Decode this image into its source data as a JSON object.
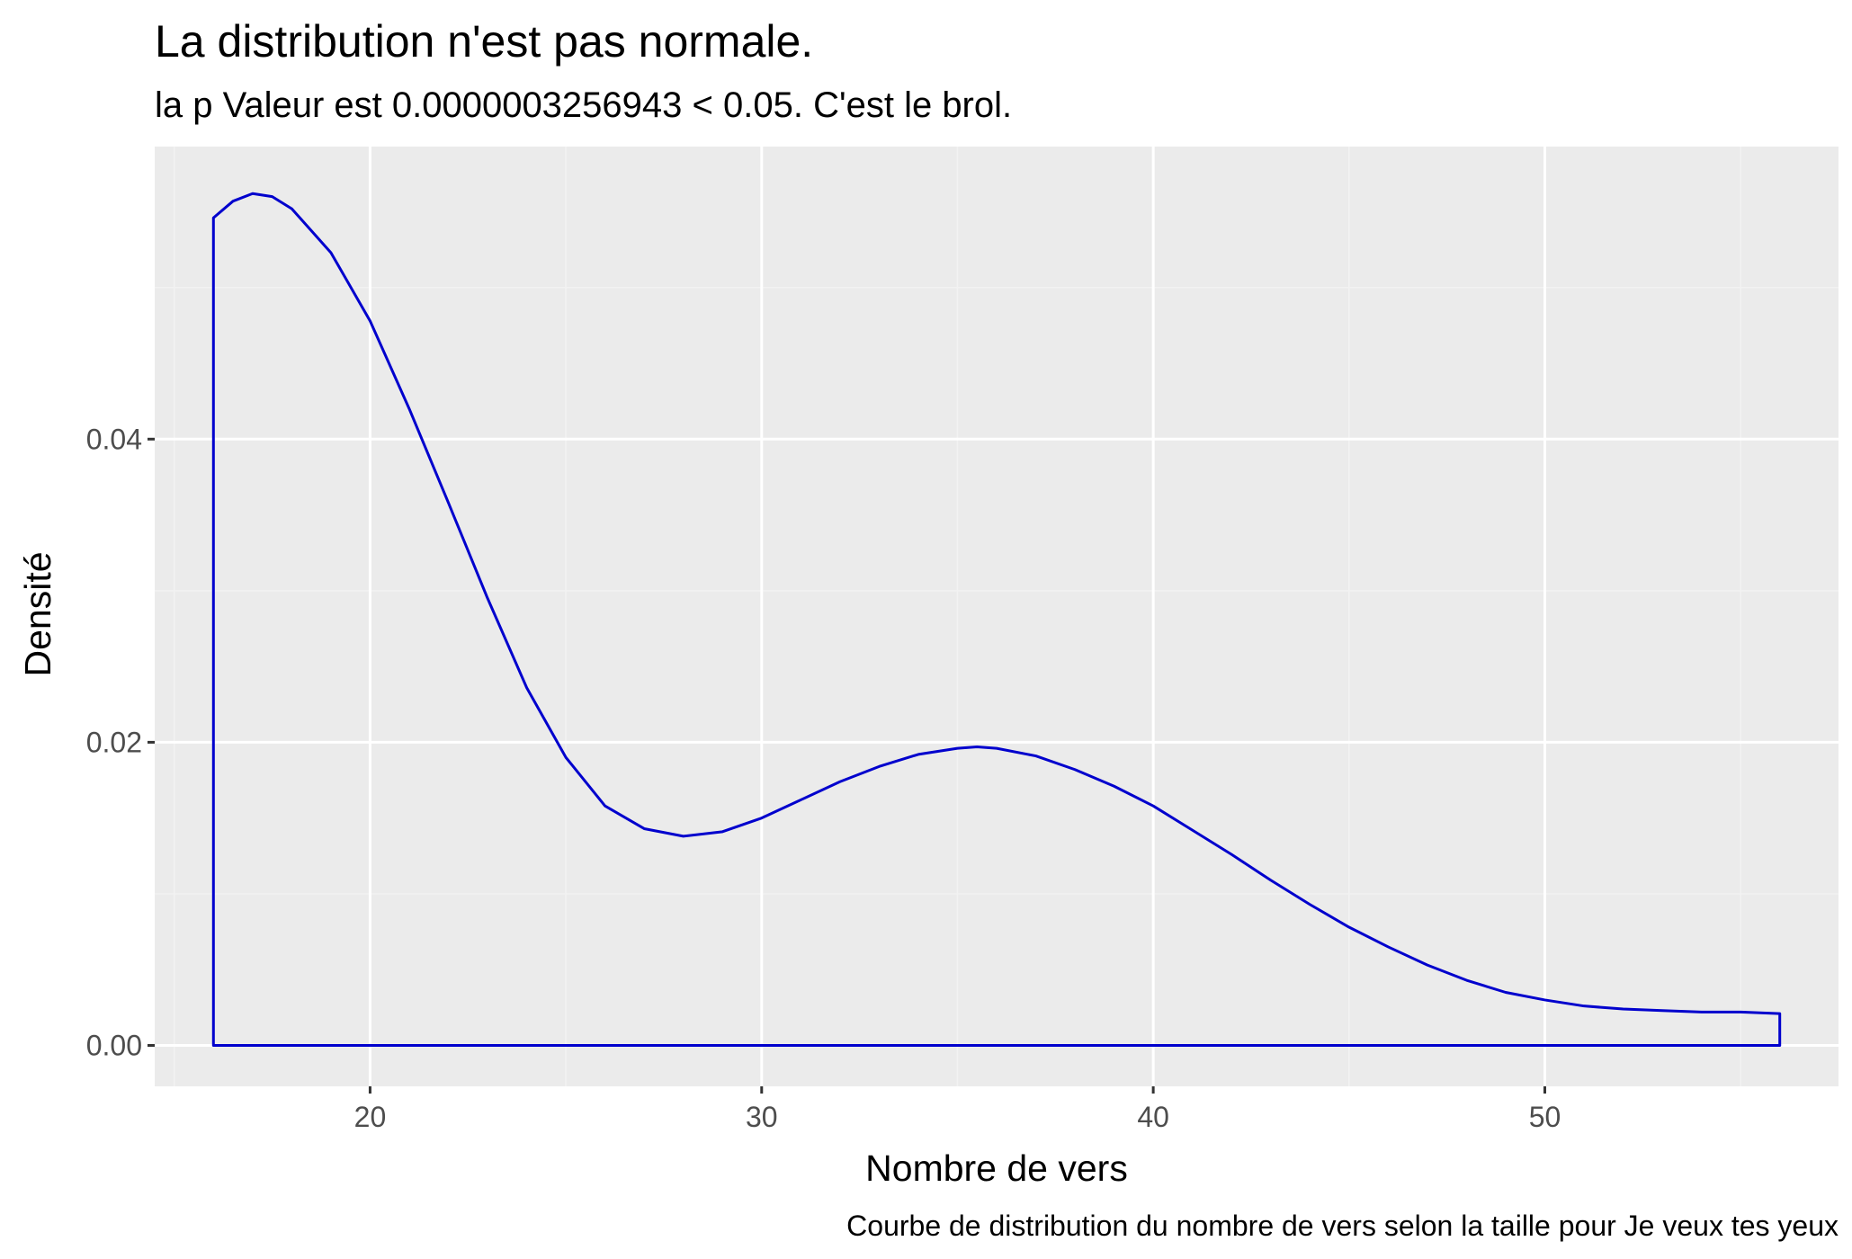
{
  "chart_data": {
    "type": "area",
    "title": "La distribution n'est pas normale.",
    "subtitle": "la p Valeur est  0.0000003256943  < 0.05. C'est le brol.",
    "caption": "Courbe de distribution du nombre de vers selon la taille pour  Je veux tes yeux",
    "xlabel": "Nombre de vers",
    "ylabel": "Densité",
    "xlim": [
      14.5,
      57.5
    ],
    "ylim": [
      -0.0027,
      0.0593
    ],
    "x_ticks": [
      20,
      30,
      40,
      50
    ],
    "x_tick_labels": [
      "20",
      "30",
      "40",
      "50"
    ],
    "y_ticks": [
      0,
      0.02,
      0.04
    ],
    "y_tick_labels": [
      "0.00",
      "0.02",
      "0.04"
    ],
    "grid": true,
    "legend": "none",
    "series": [
      {
        "x": [
          16,
          16.5,
          17,
          17.5,
          18,
          19,
          20,
          21,
          22,
          23,
          24,
          25,
          26,
          27,
          28,
          29,
          30,
          31,
          32,
          33,
          34,
          35,
          35.5,
          36,
          37,
          38,
          39,
          40,
          41,
          42,
          43,
          44,
          45,
          46,
          47,
          48,
          49,
          50,
          51,
          52,
          53,
          54,
          55,
          56
        ],
        "y": [
          0.0546,
          0.0557,
          0.0562,
          0.056,
          0.0552,
          0.0523,
          0.0478,
          0.042,
          0.0358,
          0.0295,
          0.0236,
          0.019,
          0.0158,
          0.0143,
          0.0138,
          0.0141,
          0.015,
          0.0162,
          0.0174,
          0.0184,
          0.0192,
          0.0196,
          0.0197,
          0.0196,
          0.0191,
          0.0182,
          0.0171,
          0.0158,
          0.0142,
          0.0126,
          0.0109,
          0.0093,
          0.0078,
          0.0065,
          0.0053,
          0.0043,
          0.0035,
          0.003,
          0.0026,
          0.0024,
          0.0023,
          0.0022,
          0.0022,
          0.0021
        ]
      }
    ]
  },
  "colors": {
    "panel_background": "#ebebeb",
    "grid_major": "#ffffff",
    "grid_minor": "#f2f2f2",
    "line": "#0000cd",
    "tick_text": "#4d4d4d",
    "text": "#000000"
  }
}
